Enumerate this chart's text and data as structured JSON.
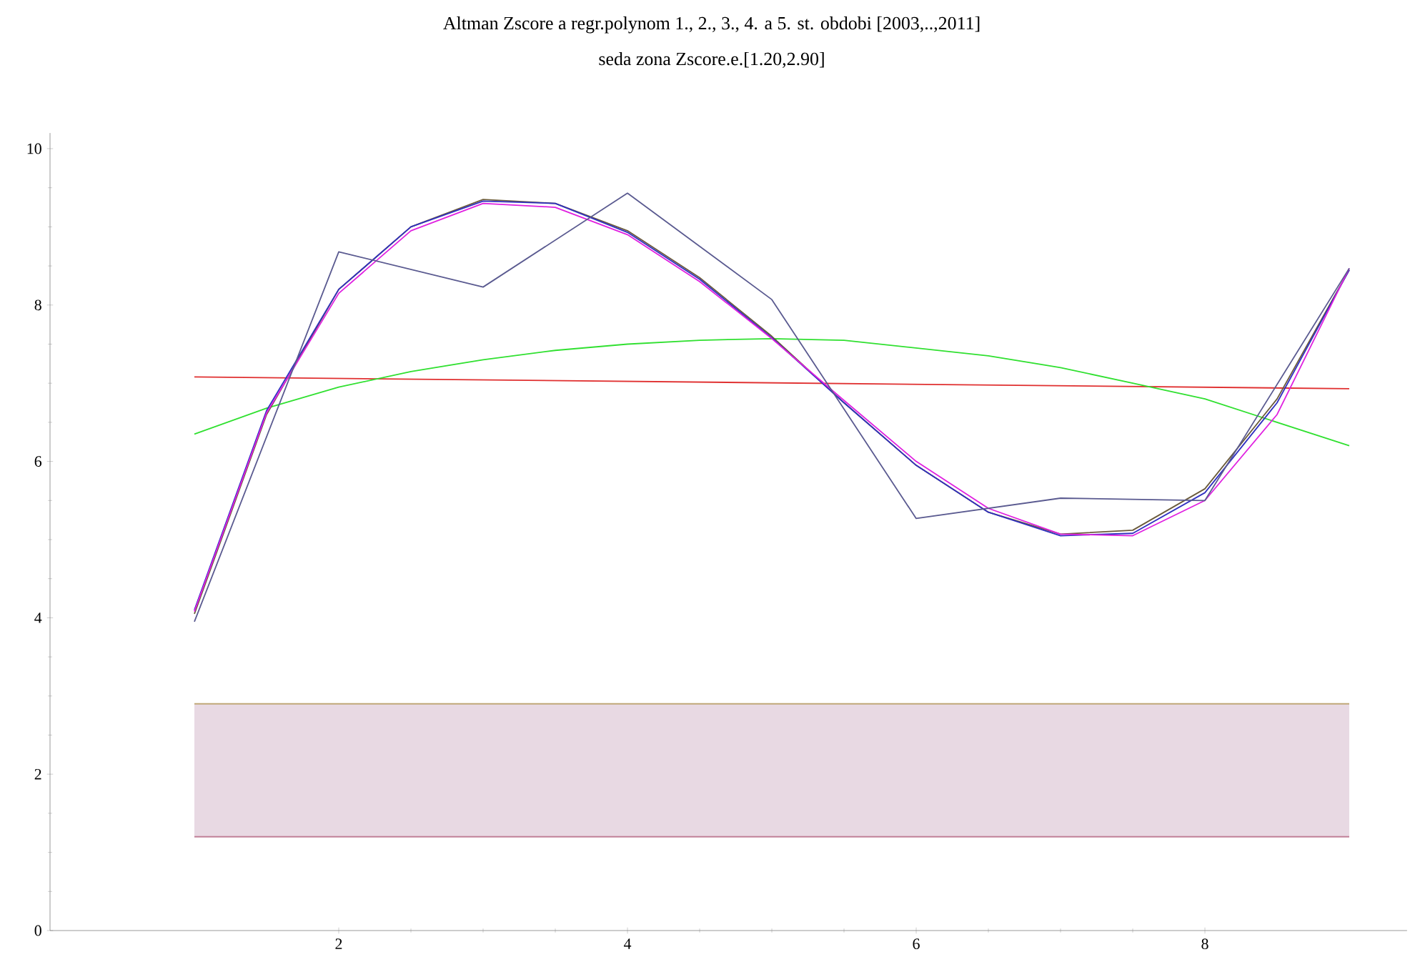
{
  "chart_data": {
    "type": "line",
    "title": "Altman Zscore a regr.polynom 1., 2., 3., 4. a 5. st. obdobi [2003,..,2011]",
    "subtitle": "seda zona Zscore.e.[1.20,2.90]",
    "xlim": [
      0,
      9.4
    ],
    "ylim": [
      0,
      10.2
    ],
    "xticks": [
      2,
      4,
      6,
      8
    ],
    "yticks": [
      0,
      2,
      4,
      6,
      8,
      10
    ],
    "marker": "none",
    "line_style": "solid",
    "grid": false,
    "bands": [
      {
        "axis": "y",
        "from": 1.2,
        "to": 2.9,
        "color": "#e8d9e3"
      }
    ],
    "ref_lines": [
      {
        "axis": "y",
        "value": 2.9,
        "color": "#c0a878"
      },
      {
        "axis": "y",
        "value": 1.2,
        "color": "#c08098"
      }
    ],
    "series": [
      {
        "color": "#e03030",
        "x": [
          1,
          9
        ],
        "values": [
          7.08,
          6.93
        ]
      },
      {
        "color": "#30e030",
        "x": [
          1,
          1.5,
          2,
          2.5,
          3,
          3.5,
          4,
          4.5,
          5,
          5.5,
          6,
          6.5,
          7,
          7.5,
          8,
          8.5,
          9
        ],
        "values": [
          6.35,
          6.68,
          6.95,
          7.15,
          7.3,
          7.42,
          7.5,
          7.55,
          7.57,
          7.55,
          7.45,
          7.35,
          7.2,
          7.0,
          6.8,
          6.5,
          6.2
        ]
      },
      {
        "color": "#6a5a3a",
        "x": [
          1,
          1.5,
          2,
          2.5,
          3,
          3.5,
          4,
          4.5,
          5,
          5.5,
          6,
          6.5,
          7,
          7.5,
          8,
          8.5,
          9
        ],
        "values": [
          4.05,
          6.6,
          8.2,
          9.0,
          9.35,
          9.3,
          8.95,
          8.35,
          7.6,
          6.75,
          5.95,
          5.35,
          5.07,
          5.12,
          5.65,
          6.8,
          8.45
        ]
      },
      {
        "color": "#3030c0",
        "x": [
          1,
          1.5,
          2,
          2.5,
          3,
          3.5,
          4,
          4.5,
          5,
          5.5,
          6,
          6.5,
          7,
          7.5,
          8,
          8.5,
          9
        ],
        "values": [
          4.1,
          6.65,
          8.2,
          9.0,
          9.33,
          9.3,
          8.93,
          8.33,
          7.58,
          6.75,
          5.95,
          5.35,
          5.05,
          5.08,
          5.6,
          6.75,
          8.45
        ]
      },
      {
        "color": "#e020e0",
        "x": [
          1,
          1.5,
          2,
          2.5,
          3,
          3.5,
          4,
          4.5,
          5,
          5.5,
          6,
          6.5,
          7,
          7.5,
          8,
          8.5,
          9
        ],
        "values": [
          4.08,
          6.62,
          8.15,
          8.95,
          9.3,
          9.25,
          8.9,
          8.3,
          7.57,
          6.78,
          6.0,
          5.4,
          5.07,
          5.05,
          5.5,
          6.6,
          8.47
        ]
      },
      {
        "color": "#5a5a90",
        "x": [
          1,
          2,
          3,
          4,
          5,
          6,
          7,
          8,
          9
        ],
        "values": [
          3.95,
          8.68,
          8.23,
          9.43,
          8.07,
          5.27,
          5.53,
          5.5,
          8.47
        ]
      }
    ]
  }
}
